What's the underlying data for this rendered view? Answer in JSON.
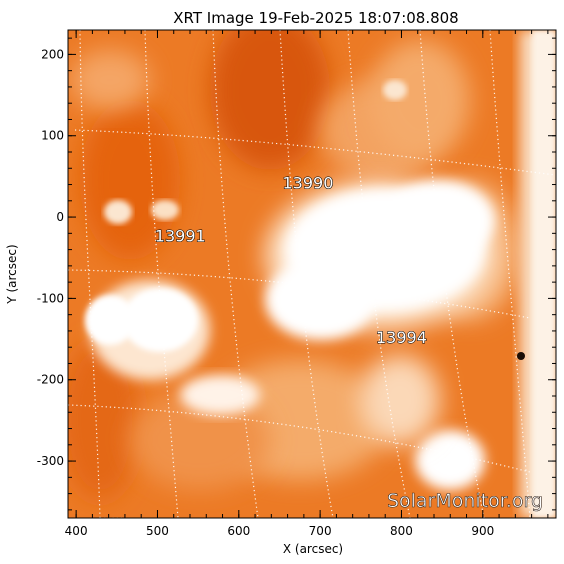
{
  "title": "XRT Image 19-Feb-2025 18:07:08.808",
  "x_axis": {
    "label": "X (arcsec)",
    "range": [
      390,
      990
    ],
    "ticks": [
      400,
      500,
      600,
      700,
      800,
      900
    ]
  },
  "y_axis": {
    "label": "Y (arcsec)",
    "range": [
      -370,
      230
    ],
    "ticks": [
      200,
      100,
      0,
      -100,
      -200,
      -300
    ]
  },
  "regions": [
    {
      "number": "13990",
      "x": 685,
      "y": 35
    },
    {
      "number": "13991",
      "x": 528,
      "y": -30
    },
    {
      "number": "13994",
      "x": 800,
      "y": -155
    }
  ],
  "watermark": "SolarMonitor.org",
  "colors": {
    "background": "#e96a12",
    "bright": "#ffffff",
    "grid": "#ffffff",
    "axes": "#000000"
  }
}
